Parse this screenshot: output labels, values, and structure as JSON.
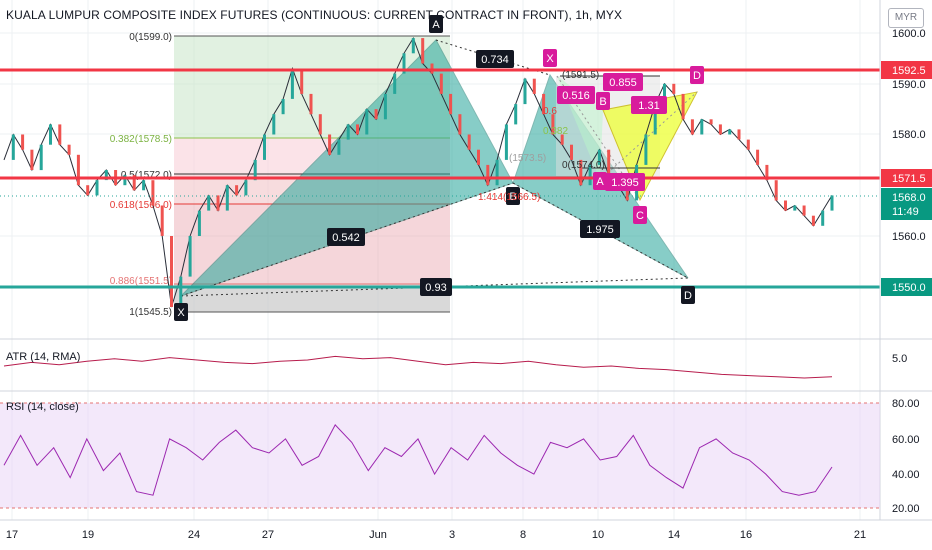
{
  "header": {
    "title": "KUALA LUMPUR COMPOSITE INDEX FUTURES (CONTINUOUS: CURRENT CONTRACT IN FRONT), 1h, MYX",
    "currency": "MYR"
  },
  "price_axis": {
    "ticks": [
      "1600.0",
      "1590.0",
      "1580.0",
      "1560.0"
    ],
    "level_tags": [
      {
        "text": "1592.5",
        "color": "#f23645"
      },
      {
        "text": "1571.5",
        "color": "#f23645"
      },
      {
        "text": "1550.0",
        "color": "#089981"
      }
    ],
    "last_price": "1568.0",
    "countdown": "11:49"
  },
  "time_axis": {
    "labels": [
      "17",
      "19",
      "24",
      "27",
      "Jun",
      "3",
      "8",
      "10",
      "14",
      "16",
      "21"
    ]
  },
  "atr": {
    "label": "ATR (14, RMA)",
    "tick": "5.0"
  },
  "rsi": {
    "label": "RSI (14, close)",
    "ticks": [
      "80.00",
      "60.00",
      "40.00",
      "20.00"
    ]
  },
  "fib_levels": [
    {
      "label": "0(1599.0)",
      "price": 1599.0
    },
    {
      "label": "0.382(1578.5)",
      "price": 1578.5
    },
    {
      "label": "0.5(1572.0)",
      "price": 1572.0
    },
    {
      "label": "0.618(1566.0)",
      "price": 1566.0
    },
    {
      "label": "0.886(1551.5)",
      "price": 1551.5
    },
    {
      "label": "1(1545.5)",
      "price": 1545.5
    }
  ],
  "harmonic_big": {
    "points": {
      "X": "X",
      "A": "A",
      "B": "B",
      "C": "X",
      "D": "D"
    },
    "ratios": [
      "0.542",
      "0.734",
      "1.975",
      "0.93"
    ],
    "extra_labels": [
      "1.414(1566.5)",
      "(1573.5)"
    ]
  },
  "harmonic_small": {
    "points": {
      "A": "A",
      "B": "B",
      "C": "C",
      "D": "D"
    },
    "ratios": [
      "0.516",
      "0.855",
      "1.31",
      "1.395"
    ],
    "extra_labels": [
      "(1591.5)",
      "0(1574.0)",
      "0.382",
      "0.6"
    ]
  },
  "chart_data": {
    "type": "line",
    "title": "KUALA LUMPUR COMPOSITE INDEX FUTURES (CONTINUOUS: CURRENT CONTRACT IN FRONT), 1h, MYX",
    "xlabel": "",
    "ylabel": "",
    "ylim": [
      1545,
      1603
    ],
    "x": [
      "17",
      "19",
      "24",
      "27",
      "Jun",
      "3",
      "8",
      "10",
      "14",
      "16",
      "21"
    ],
    "series": [],
    "price_path": [
      1575,
      1580,
      1577,
      1573,
      1578,
      1582,
      1578,
      1576,
      1570,
      1568,
      1571,
      1573,
      1570,
      1572,
      1569,
      1571,
      1566,
      1560,
      1546,
      1552,
      1560,
      1565,
      1568,
      1565,
      1570,
      1568,
      1571,
      1575,
      1580,
      1584,
      1587,
      1593,
      1588,
      1584,
      1580,
      1576,
      1579,
      1582,
      1580,
      1585,
      1583,
      1588,
      1592,
      1596,
      1599,
      1594,
      1592,
      1588,
      1584,
      1580,
      1577,
      1574,
      1570,
      1575,
      1582,
      1586,
      1591,
      1588,
      1584,
      1580,
      1578,
      1575,
      1570,
      1574,
      1577,
      1572,
      1570,
      1567,
      1574,
      1580,
      1586,
      1590,
      1588,
      1583,
      1580,
      1583,
      1582,
      1580,
      1581,
      1579,
      1577,
      1574,
      1571,
      1567,
      1565,
      1566,
      1564,
      1562,
      1565,
      1568
    ],
    "horizontal_levels": [
      1592.5,
      1571.5,
      1550.0
    ],
    "atr_path": [
      5.5,
      5.8,
      5.6,
      5.9,
      6.1,
      5.9,
      6.2,
      6.0,
      5.8,
      5.7,
      5.9,
      6.0,
      6.3,
      6.1,
      6.2,
      5.9,
      5.6,
      5.8,
      5.7,
      5.9,
      5.6,
      5.4,
      5.5,
      5.3,
      5.2,
      5.0,
      4.8,
      4.7,
      4.6,
      4.5,
      4.6
    ],
    "atr_ylim": [
      3.5,
      7.5
    ],
    "rsi_path": [
      45,
      62,
      45,
      55,
      38,
      60,
      42,
      52,
      30,
      28,
      60,
      55,
      48,
      58,
      65,
      55,
      52,
      60,
      45,
      50,
      68,
      58,
      42,
      55,
      50,
      60,
      40,
      55,
      48,
      62,
      52,
      45,
      40,
      58,
      55,
      60,
      48,
      50,
      62,
      45,
      38,
      32,
      55,
      60,
      52,
      48,
      40,
      30,
      28,
      30,
      44
    ],
    "rsi_ylim": [
      15,
      85
    ]
  }
}
